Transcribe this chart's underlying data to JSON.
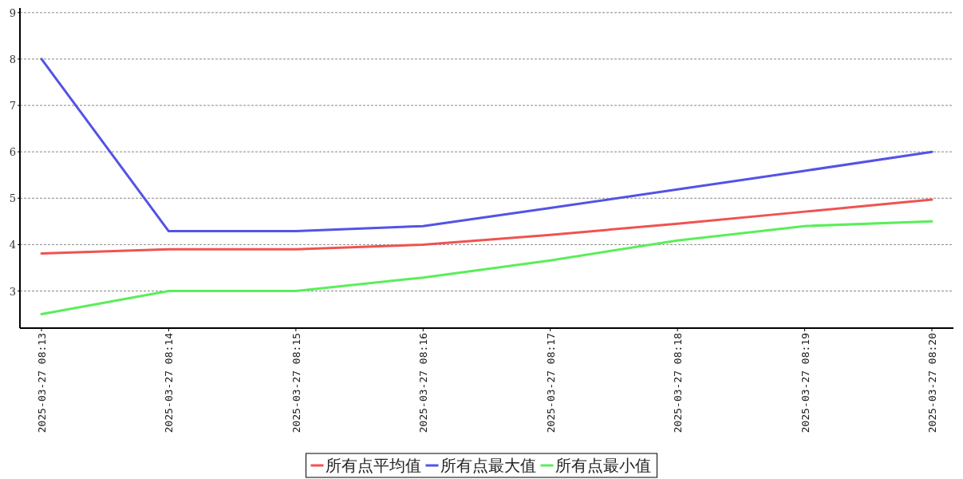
{
  "chart_data": {
    "type": "line",
    "categories": [
      "2025-03-27 08:13",
      "2025-03-27 08:14",
      "2025-03-27 08:15",
      "2025-03-27 08:16",
      "2025-03-27 08:17",
      "2025-03-27 08:18",
      "2025-03-27 08:19",
      "2025-03-27 08:20"
    ],
    "series": [
      {
        "name": "所有点平均值",
        "color": "#ef5350",
        "values": [
          3.81,
          3.9,
          3.9,
          4.0,
          4.21,
          4.45,
          4.71,
          4.97
        ]
      },
      {
        "name": "所有点最大值",
        "color": "#5353e6",
        "values": [
          8.0,
          4.29,
          4.29,
          4.4,
          4.79,
          5.19,
          5.59,
          6.0
        ]
      },
      {
        "name": "所有点最小值",
        "color": "#5aee5a",
        "values": [
          2.5,
          3.0,
          3.0,
          3.29,
          3.66,
          4.09,
          4.4,
          4.5
        ]
      }
    ],
    "ylim": [
      2.2,
      9.1
    ],
    "yticks": [
      3,
      4,
      5,
      6,
      7,
      8,
      9
    ],
    "grid": "y",
    "legend": "bottom",
    "marker": "none",
    "line_style": "solid"
  }
}
